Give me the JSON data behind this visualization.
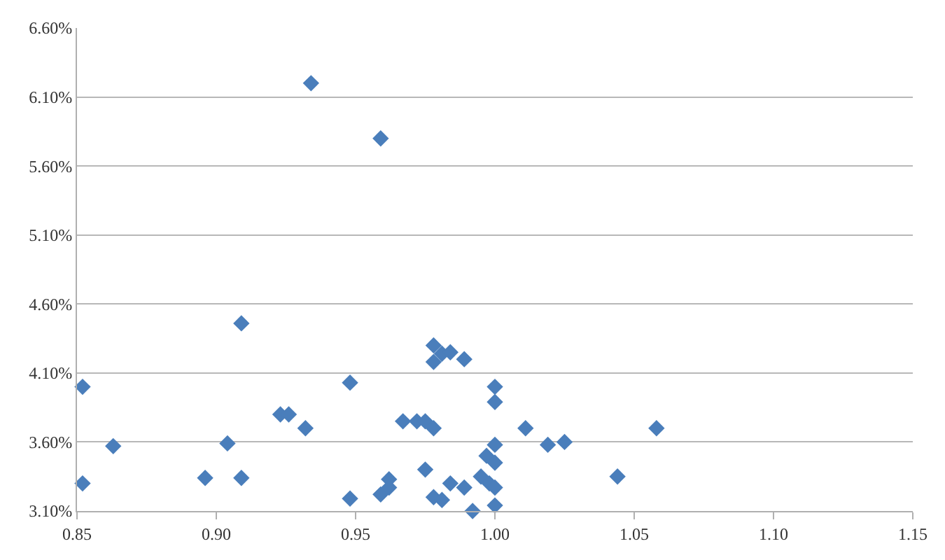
{
  "chart_data": {
    "type": "scatter",
    "marker": "diamond",
    "grid": "y",
    "series": [
      {
        "color": "#4a7ebb",
        "x": [
          0.852,
          0.852,
          0.863,
          0.909,
          0.896,
          0.904,
          0.909,
          0.923,
          0.926,
          0.932,
          0.948,
          0.948,
          0.959,
          0.962,
          0.962,
          0.967,
          0.972,
          0.975,
          0.978,
          0.975,
          0.978,
          0.978,
          0.981,
          0.984,
          0.989,
          0.978,
          0.981,
          0.984,
          0.989,
          0.992,
          1.0,
          1.0,
          1.0,
          0.997,
          1.0,
          0.995,
          0.997,
          0.998,
          1.0,
          1.0,
          1.011,
          1.019,
          1.025,
          1.044,
          1.058,
          0.934,
          0.959
        ],
        "values": [
          4.0,
          3.3,
          3.57,
          4.46,
          3.34,
          3.59,
          3.34,
          3.8,
          3.8,
          3.7,
          4.03,
          3.19,
          3.22,
          3.33,
          3.27,
          3.75,
          3.75,
          3.75,
          3.7,
          3.4,
          4.3,
          4.18,
          4.24,
          4.25,
          4.2,
          3.2,
          3.18,
          3.3,
          3.27,
          3.1,
          4.0,
          3.89,
          3.58,
          3.5,
          3.45,
          3.35,
          null,
          3.3,
          3.27,
          3.14,
          3.7,
          3.58,
          3.6,
          3.35,
          3.7,
          6.2,
          5.8
        ]
      }
    ],
    "xlim": [
      0.85,
      1.15
    ],
    "xticks": [
      {
        "value": 0.85,
        "label": "0.85"
      },
      {
        "value": 0.9,
        "label": "0.90"
      },
      {
        "value": 0.95,
        "label": "0.95"
      },
      {
        "value": 1.0,
        "label": "1.00"
      },
      {
        "value": 1.05,
        "label": "1.05"
      },
      {
        "value": 1.1,
        "label": "1.10"
      },
      {
        "value": 1.15,
        "label": "1.15"
      }
    ],
    "ylim": [
      3.1,
      6.6
    ],
    "yticks": [
      {
        "value": 3.1,
        "label": "3.10%"
      },
      {
        "value": 3.6,
        "label": "3.60%"
      },
      {
        "value": 4.1,
        "label": "4.10%"
      },
      {
        "value": 4.6,
        "label": "4.60%"
      },
      {
        "value": 5.1,
        "label": "5.10%"
      },
      {
        "value": 5.6,
        "label": "5.60%"
      },
      {
        "value": 6.1,
        "label": "6.10%"
      },
      {
        "value": 6.6,
        "label": "6.60%"
      }
    ]
  }
}
